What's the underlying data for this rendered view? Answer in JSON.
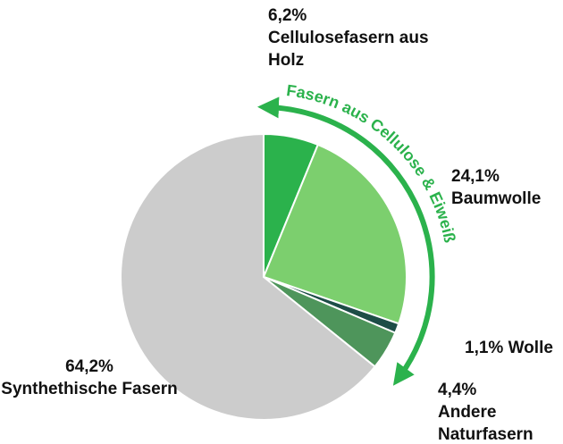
{
  "chart_data": {
    "type": "pie",
    "categories": [
      "Cellulosefasern aus Holz",
      "Baumwolle",
      "Wolle",
      "Andere Naturfasern",
      "Synthethische Fasern"
    ],
    "values": [
      6.2,
      24.1,
      1.1,
      4.4,
      64.2
    ],
    "value_labels": [
      "6,2%",
      "24,1%",
      "1,1%",
      "4,4%",
      "64,2%"
    ],
    "colors": [
      "#2bb24c",
      "#7ccf6e",
      "#1d4d47",
      "#4e955b",
      "#cccccc"
    ],
    "annotation": "Fasern aus Cellulose & Eiweiß"
  }
}
